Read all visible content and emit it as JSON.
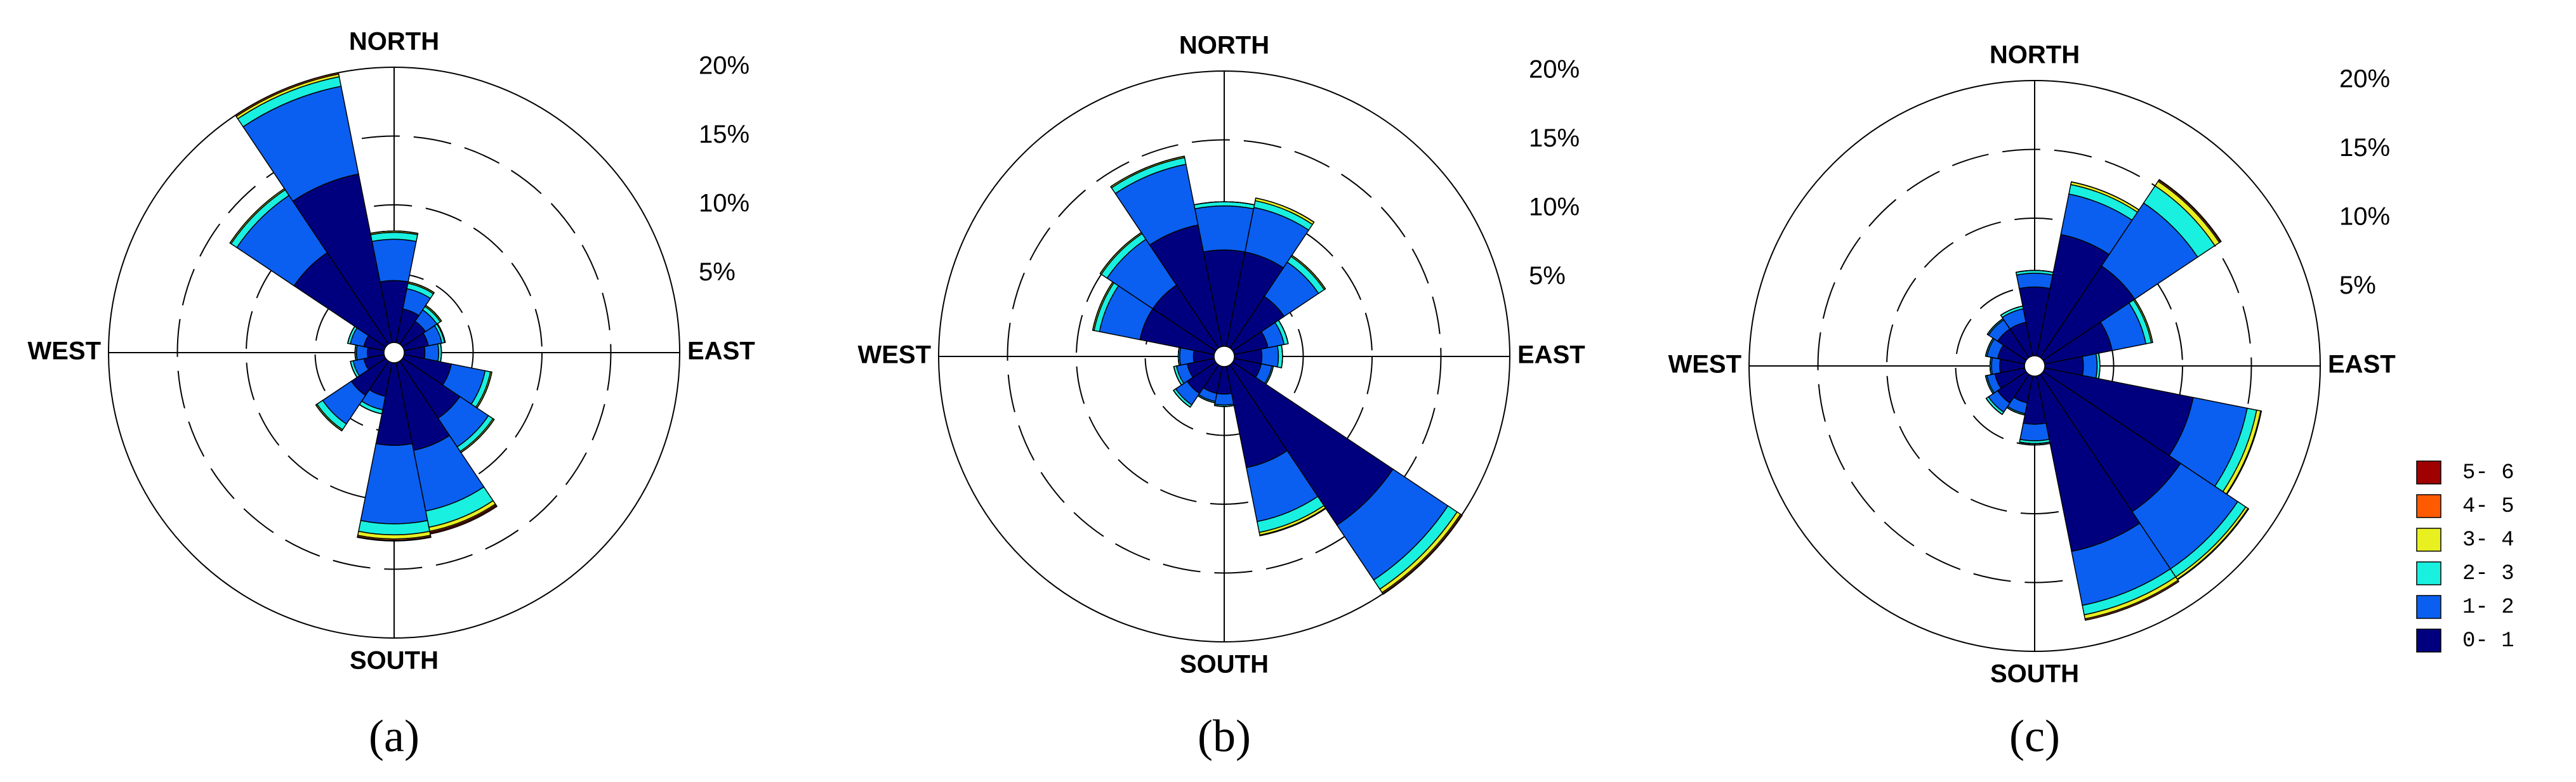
{
  "chart_data": [
    {
      "type": "windrose",
      "caption": "(a)",
      "labels": {
        "north": "NORTH",
        "east": "EAST",
        "south": "SOUTH",
        "west": "WEST"
      },
      "directions": [
        0,
        22.5,
        45,
        67.5,
        90,
        112.5,
        135,
        157.5,
        180,
        202.5,
        225,
        247.5,
        270,
        292.5,
        315,
        337.5
      ],
      "rlim": [
        0,
        20
      ],
      "rticks": [
        {
          "value": 5,
          "label": "5%"
        },
        {
          "value": 10,
          "label": "10%"
        },
        {
          "value": 15,
          "label": "15%"
        },
        {
          "value": 20,
          "label": "20%"
        }
      ],
      "series": [
        {
          "color": "#00007f",
          "values": [
            4.5,
            2.5,
            2.0,
            1.8,
            1.5,
            3.5,
            5.0,
            6.5,
            6.0,
            2.5,
            3.0,
            1.5,
            1.2,
            1.5,
            8.0,
            12.5
          ]
        },
        {
          "color": "#0a5ff0",
          "values": [
            3.0,
            1.5,
            1.0,
            1.0,
            1.0,
            2.5,
            2.5,
            4.5,
            5.7,
            1.0,
            2.5,
            0.8,
            0.8,
            1.0,
            5.0,
            6.5
          ]
        },
        {
          "color": "#19f0e0",
          "values": [
            0.5,
            0.4,
            0.3,
            0.2,
            0.2,
            0.4,
            0.4,
            1.2,
            0.8,
            0.3,
            0.5,
            0.2,
            0.1,
            0.2,
            0.5,
            0.7
          ]
        },
        {
          "color": "#e8f020",
          "values": [
            0.1,
            0.1,
            0.1,
            0.05,
            0,
            0.1,
            0.1,
            0.3,
            0.3,
            0,
            0.1,
            0,
            0,
            0,
            0.1,
            0.2
          ]
        },
        {
          "color": "#ff5a00",
          "values": [
            0,
            0,
            0,
            0,
            0,
            0,
            0,
            0.1,
            0.1,
            0,
            0,
            0,
            0,
            0,
            0,
            0.1
          ]
        },
        {
          "color": "#a00000",
          "values": [
            0,
            0,
            0,
            0,
            0,
            0,
            0,
            0.1,
            0.05,
            0,
            0,
            0,
            0,
            0,
            0,
            0
          ]
        }
      ]
    },
    {
      "type": "windrose",
      "caption": "(b)",
      "labels": {
        "north": "NORTH",
        "east": "EAST",
        "south": "SOUTH",
        "west": "WEST"
      },
      "directions": [
        0,
        22.5,
        45,
        67.5,
        90,
        112.5,
        135,
        157.5,
        180,
        202.5,
        225,
        247.5,
        270,
        292.5,
        315,
        337.5
      ],
      "rlim": [
        0,
        20
      ],
      "rticks": [
        {
          "value": 5,
          "label": "5%"
        },
        {
          "value": 10,
          "label": "10%"
        },
        {
          "value": 15,
          "label": "15%"
        },
        {
          "value": 20,
          "label": "20%"
        }
      ],
      "series": [
        {
          "color": "#00007f",
          "values": [
            7,
            7,
            4.5,
            2.5,
            2,
            2,
            14,
            7.5,
            2,
            2,
            2.5,
            2,
            1.5,
            5.5,
            5.5,
            9
          ]
        },
        {
          "color": "#0a5ff0",
          "values": [
            3.2,
            3.3,
            3,
            1.2,
            1.2,
            0.8,
            4.8,
            4,
            0.8,
            0.6,
            1,
            0.8,
            1,
            3,
            4,
            4.5
          ]
        },
        {
          "color": "#19f0e0",
          "values": [
            0.3,
            0.5,
            0.5,
            0.3,
            0.3,
            0.1,
            0.8,
            0.8,
            0.1,
            0.1,
            0.2,
            0.2,
            0.1,
            0.4,
            0.5,
            0.5
          ]
        },
        {
          "color": "#e8f020",
          "values": [
            0,
            0.2,
            0.1,
            0,
            0,
            0,
            0.3,
            0.2,
            0,
            0,
            0,
            0,
            0,
            0.1,
            0.1,
            0.1
          ]
        },
        {
          "color": "#ff5a00",
          "values": [
            0,
            0,
            0,
            0,
            0,
            0,
            0.1,
            0.05,
            0,
            0,
            0,
            0,
            0,
            0,
            0,
            0
          ]
        },
        {
          "color": "#a00000",
          "values": [
            0,
            0,
            0,
            0,
            0,
            0,
            0.05,
            0,
            0,
            0,
            0,
            0,
            0,
            0,
            0,
            0
          ]
        }
      ]
    },
    {
      "type": "windrose",
      "caption": "(c)",
      "labels": {
        "north": "NORTH",
        "east": "EAST",
        "south": "SOUTH",
        "west": "WEST"
      },
      "directions": [
        0,
        22.5,
        45,
        67.5,
        90,
        112.5,
        135,
        157.5,
        180,
        202.5,
        225,
        247.5,
        270,
        292.5,
        315,
        337.5
      ],
      "rlim": [
        0,
        20
      ],
      "rticks": [
        {
          "value": 5,
          "label": "5%"
        },
        {
          "value": 10,
          "label": "10%"
        },
        {
          "value": 15,
          "label": "15%"
        },
        {
          "value": 20,
          "label": "20%"
        }
      ],
      "series": [
        {
          "name": "0- 1",
          "color": "#00007f",
          "values": [
            5,
            9,
            8,
            5,
            2.8,
            11,
            12,
            13,
            3.5,
            2,
            2.5,
            2.2,
            1.8,
            2,
            2.5,
            2.5
          ]
        },
        {
          "name": "1- 2",
          "color": "#0a5ff0",
          "values": [
            1,
            3,
            5.5,
            2.5,
            1,
            4,
            5,
            4,
            1.2,
            0.8,
            0.8,
            0.6,
            0.6,
            0.8,
            0.8,
            1
          ]
        },
        {
          "name": "2- 3",
          "color": "#19f0e0",
          "values": [
            0.2,
            0.7,
            1.5,
            0.4,
            0.2,
            0.7,
            0.7,
            0.7,
            0.2,
            0.1,
            0.2,
            0.1,
            0.1,
            0.1,
            0.1,
            0.2
          ]
        },
        {
          "name": "3- 4",
          "color": "#e8f020",
          "values": [
            0,
            0.2,
            0.4,
            0.1,
            0,
            0.3,
            0.2,
            0.3,
            0,
            0,
            0,
            0,
            0,
            0,
            0,
            0
          ]
        },
        {
          "name": "4- 5",
          "color": "#ff5a00",
          "values": [
            0,
            0,
            0.1,
            0,
            0,
            0.05,
            0.05,
            0.1,
            0,
            0,
            0,
            0,
            0,
            0,
            0,
            0
          ]
        },
        {
          "name": "5- 6",
          "color": "#a00000",
          "values": [
            0,
            0,
            0.05,
            0,
            0,
            0,
            0,
            0,
            0,
            0,
            0,
            0,
            0,
            0,
            0,
            0
          ]
        }
      ]
    }
  ]
}
